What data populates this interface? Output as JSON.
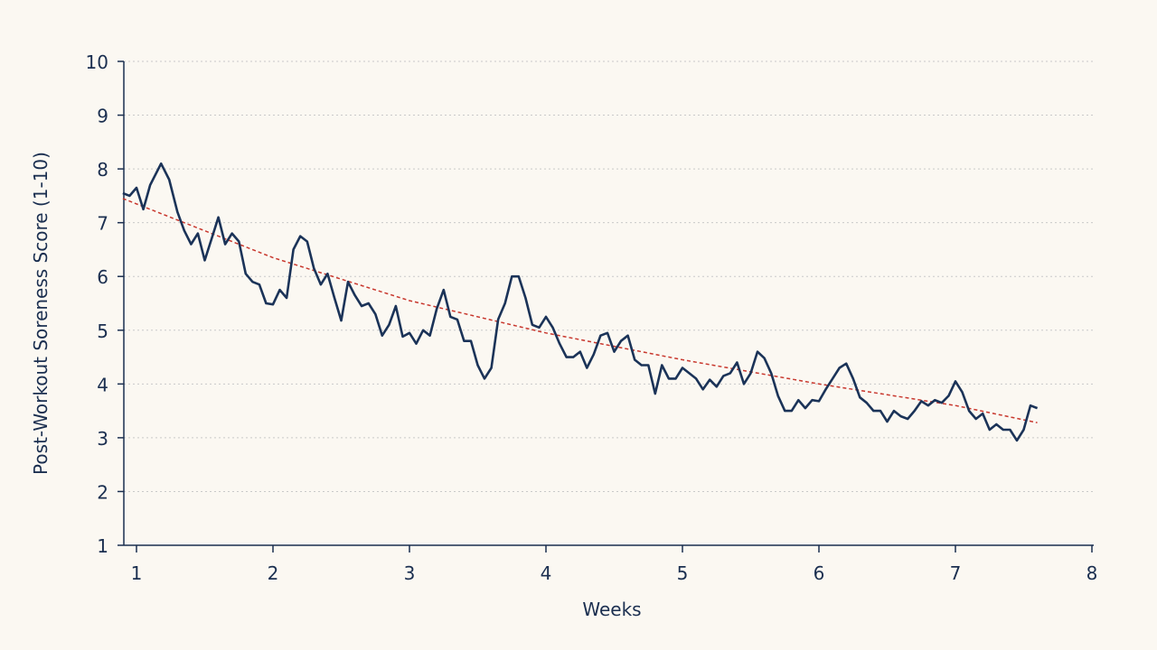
{
  "chart_data": {
    "type": "line",
    "title": "",
    "xlabel": "Weeks",
    "ylabel": "Post-Workout Soreness Score (1-10)",
    "xlim": [
      0.9,
      8.0
    ],
    "ylim": [
      1,
      10
    ],
    "x_ticks": [
      "1",
      "2",
      "3",
      "4",
      "5",
      "6",
      "7",
      "8"
    ],
    "y_ticks": [
      "1",
      "2",
      "3",
      "4",
      "5",
      "6",
      "7",
      "8",
      "9",
      "10"
    ],
    "grid": "horizontal-dotted",
    "colors": {
      "series": "#1b3358",
      "trend": "#c8372d",
      "axis": "#1b2f50",
      "grid": "#c9c9c9"
    },
    "series": [
      {
        "values": [
          [
            0.9,
            7.55
          ],
          [
            0.95,
            7.5
          ],
          [
            1.0,
            7.65
          ],
          [
            1.05,
            7.25
          ],
          [
            1.1,
            7.7
          ],
          [
            1.18,
            8.1
          ],
          [
            1.24,
            7.8
          ],
          [
            1.3,
            7.2
          ],
          [
            1.35,
            6.85
          ],
          [
            1.4,
            6.6
          ],
          [
            1.45,
            6.8
          ],
          [
            1.5,
            6.3
          ],
          [
            1.55,
            6.7
          ],
          [
            1.6,
            7.1
          ],
          [
            1.65,
            6.6
          ],
          [
            1.7,
            6.8
          ],
          [
            1.75,
            6.65
          ],
          [
            1.8,
            6.05
          ],
          [
            1.85,
            5.9
          ],
          [
            1.9,
            5.85
          ],
          [
            1.95,
            5.5
          ],
          [
            2.0,
            5.48
          ],
          [
            2.05,
            5.75
          ],
          [
            2.1,
            5.6
          ],
          [
            2.15,
            6.5
          ],
          [
            2.2,
            6.75
          ],
          [
            2.25,
            6.65
          ],
          [
            2.3,
            6.15
          ],
          [
            2.35,
            5.85
          ],
          [
            2.4,
            6.05
          ],
          [
            2.45,
            5.6
          ],
          [
            2.5,
            5.18
          ],
          [
            2.55,
            5.9
          ],
          [
            2.6,
            5.65
          ],
          [
            2.65,
            5.45
          ],
          [
            2.7,
            5.5
          ],
          [
            2.75,
            5.3
          ],
          [
            2.8,
            4.9
          ],
          [
            2.85,
            5.1
          ],
          [
            2.9,
            5.45
          ],
          [
            2.95,
            4.88
          ],
          [
            3.0,
            4.95
          ],
          [
            3.05,
            4.75
          ],
          [
            3.1,
            5.0
          ],
          [
            3.15,
            4.9
          ],
          [
            3.2,
            5.4
          ],
          [
            3.25,
            5.75
          ],
          [
            3.3,
            5.25
          ],
          [
            3.35,
            5.2
          ],
          [
            3.4,
            4.8
          ],
          [
            3.45,
            4.8
          ],
          [
            3.5,
            4.35
          ],
          [
            3.55,
            4.1
          ],
          [
            3.6,
            4.3
          ],
          [
            3.65,
            5.2
          ],
          [
            3.7,
            5.5
          ],
          [
            3.75,
            6.0
          ],
          [
            3.8,
            6.0
          ],
          [
            3.85,
            5.6
          ],
          [
            3.9,
            5.1
          ],
          [
            3.95,
            5.05
          ],
          [
            4.0,
            5.25
          ],
          [
            4.05,
            5.05
          ],
          [
            4.1,
            4.75
          ],
          [
            4.15,
            4.5
          ],
          [
            4.2,
            4.5
          ],
          [
            4.25,
            4.6
          ],
          [
            4.3,
            4.3
          ],
          [
            4.35,
            4.55
          ],
          [
            4.4,
            4.9
          ],
          [
            4.45,
            4.95
          ],
          [
            4.5,
            4.6
          ],
          [
            4.55,
            4.8
          ],
          [
            4.6,
            4.9
          ],
          [
            4.65,
            4.45
          ],
          [
            4.7,
            4.35
          ],
          [
            4.75,
            4.35
          ],
          [
            4.8,
            3.82
          ],
          [
            4.85,
            4.35
          ],
          [
            4.9,
            4.1
          ],
          [
            4.95,
            4.1
          ],
          [
            5.0,
            4.3
          ],
          [
            5.05,
            4.2
          ],
          [
            5.1,
            4.1
          ],
          [
            5.15,
            3.9
          ],
          [
            5.2,
            4.08
          ],
          [
            5.25,
            3.95
          ],
          [
            5.3,
            4.15
          ],
          [
            5.35,
            4.2
          ],
          [
            5.4,
            4.4
          ],
          [
            5.45,
            4.0
          ],
          [
            5.5,
            4.2
          ],
          [
            5.55,
            4.6
          ],
          [
            5.6,
            4.48
          ],
          [
            5.65,
            4.2
          ],
          [
            5.7,
            3.78
          ],
          [
            5.75,
            3.5
          ],
          [
            5.8,
            3.5
          ],
          [
            5.85,
            3.7
          ],
          [
            5.9,
            3.55
          ],
          [
            5.95,
            3.7
          ],
          [
            6.0,
            3.68
          ],
          [
            6.05,
            3.9
          ],
          [
            6.1,
            4.1
          ],
          [
            6.15,
            4.3
          ],
          [
            6.2,
            4.38
          ],
          [
            6.25,
            4.1
          ],
          [
            6.3,
            3.75
          ],
          [
            6.35,
            3.65
          ],
          [
            6.4,
            3.5
          ],
          [
            6.45,
            3.5
          ],
          [
            6.5,
            3.3
          ],
          [
            6.55,
            3.5
          ],
          [
            6.6,
            3.4
          ],
          [
            6.65,
            3.35
          ],
          [
            6.7,
            3.5
          ],
          [
            6.75,
            3.68
          ],
          [
            6.8,
            3.6
          ],
          [
            6.85,
            3.7
          ],
          [
            6.9,
            3.65
          ],
          [
            6.95,
            3.78
          ],
          [
            7.0,
            4.05
          ],
          [
            7.05,
            3.85
          ],
          [
            7.1,
            3.5
          ],
          [
            7.15,
            3.35
          ],
          [
            7.2,
            3.45
          ],
          [
            7.25,
            3.15
          ],
          [
            7.3,
            3.25
          ],
          [
            7.35,
            3.15
          ],
          [
            7.4,
            3.15
          ],
          [
            7.45,
            2.95
          ],
          [
            7.5,
            3.15
          ],
          [
            7.55,
            3.6
          ],
          [
            7.6,
            3.55
          ]
        ]
      }
    ],
    "trendline": {
      "style": "dashed",
      "values": [
        [
          0.9,
          7.45
        ],
        [
          2.0,
          6.35
        ],
        [
          3.0,
          5.55
        ],
        [
          4.0,
          4.95
        ],
        [
          5.0,
          4.45
        ],
        [
          6.0,
          4.0
        ],
        [
          7.0,
          3.6
        ],
        [
          7.6,
          3.28
        ]
      ]
    }
  }
}
